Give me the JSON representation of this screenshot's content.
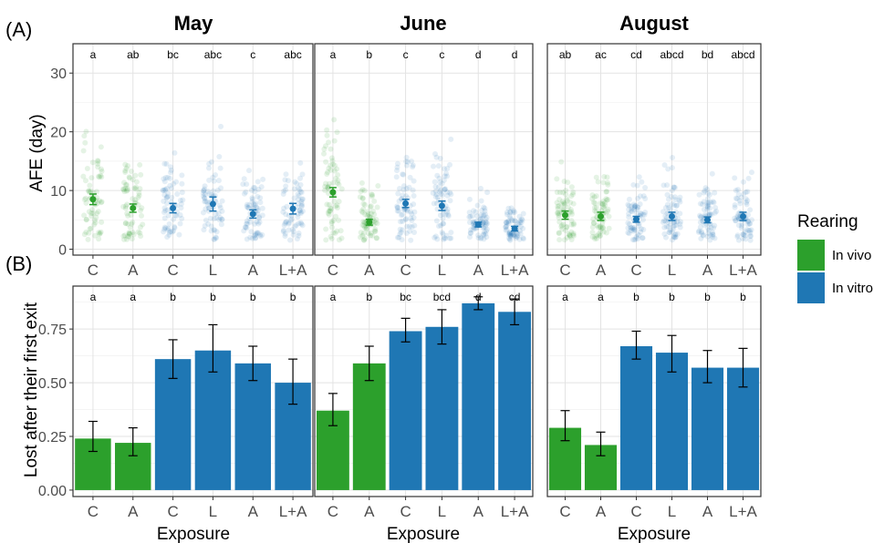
{
  "figure": {
    "panel_a_letter": "A",
    "panel_b_letter": "B",
    "legend": {
      "title": "Rearing",
      "items": [
        {
          "label": "In vivo",
          "color": "#2ca02c"
        },
        {
          "label": "In vitro",
          "color": "#1f77b4"
        }
      ]
    }
  },
  "chart_data": [
    {
      "id": "afe",
      "type": "scatter",
      "ylabel": "AFE (day)",
      "xlabel": "",
      "ylim": [
        -1,
        35
      ],
      "yticks": [
        0,
        10,
        20,
        30
      ],
      "grid": true,
      "facets": [
        {
          "title": "May",
          "categories": [
            "C",
            "A",
            "C",
            "L",
            "A",
            "L+A"
          ],
          "rearing": [
            "In vivo",
            "In vivo",
            "In vitro",
            "In vitro",
            "In vitro",
            "In vitro"
          ],
          "means": [
            8.5,
            7.0,
            7.0,
            7.7,
            6.0,
            6.9
          ],
          "lower": [
            7.6,
            6.3,
            6.2,
            6.5,
            5.3,
            6.0
          ],
          "upper": [
            9.4,
            7.7,
            7.8,
            8.9,
            6.7,
            7.8
          ],
          "letters": [
            "a",
            "ab",
            "bc",
            "abc",
            "c",
            "abc"
          ]
        },
        {
          "title": "June",
          "categories": [
            "C",
            "A",
            "C",
            "L",
            "A",
            "L+A"
          ],
          "rearing": [
            "In vivo",
            "In vivo",
            "In vitro",
            "In vitro",
            "In vitro",
            "In vitro"
          ],
          "means": [
            9.7,
            4.6,
            7.8,
            7.4,
            4.2,
            3.5
          ],
          "lower": [
            8.9,
            4.1,
            7.1,
            6.6,
            3.8,
            3.1
          ],
          "upper": [
            10.5,
            5.1,
            8.5,
            8.2,
            4.6,
            3.9
          ],
          "letters": [
            "a",
            "b",
            "c",
            "c",
            "d",
            "d"
          ]
        },
        {
          "title": "August",
          "categories": [
            "C",
            "A",
            "C",
            "L",
            "A",
            "L+A"
          ],
          "rearing": [
            "In vivo",
            "In vivo",
            "In vitro",
            "In vitro",
            "In vitro",
            "In vitro"
          ],
          "means": [
            5.8,
            5.6,
            5.1,
            5.6,
            5.0,
            5.6
          ],
          "lower": [
            5.1,
            4.9,
            4.6,
            4.9,
            4.5,
            4.9
          ],
          "upper": [
            6.5,
            6.3,
            5.6,
            6.3,
            5.5,
            6.3
          ],
          "letters": [
            "ab",
            "ac",
            "cd",
            "abcd",
            "bd",
            "abcd"
          ]
        }
      ]
    },
    {
      "id": "lost",
      "type": "bar",
      "ylabel": "Lost after their first exit",
      "xlabel": "Exposure",
      "ylim": [
        -0.03,
        0.95
      ],
      "yticks": [
        0.0,
        0.25,
        0.5,
        0.75
      ],
      "ytick_labels": [
        "0.00",
        "0.25",
        "0.50",
        "0.75"
      ],
      "grid": true,
      "facets": [
        {
          "title": "May",
          "categories": [
            "C",
            "A",
            "C",
            "L",
            "A",
            "L+A"
          ],
          "rearing": [
            "In vivo",
            "In vivo",
            "In vitro",
            "In vitro",
            "In vitro",
            "In vitro"
          ],
          "values": [
            0.24,
            0.22,
            0.61,
            0.65,
            0.59,
            0.5
          ],
          "lower": [
            0.18,
            0.16,
            0.52,
            0.55,
            0.51,
            0.4
          ],
          "upper": [
            0.32,
            0.29,
            0.7,
            0.77,
            0.67,
            0.61
          ],
          "letters": [
            "a",
            "a",
            "b",
            "b",
            "b",
            "b"
          ]
        },
        {
          "title": "June",
          "categories": [
            "C",
            "A",
            "C",
            "L",
            "A",
            "L+A"
          ],
          "rearing": [
            "In vivo",
            "In vivo",
            "In vitro",
            "In vitro",
            "In vitro",
            "In vitro"
          ],
          "values": [
            0.37,
            0.59,
            0.74,
            0.76,
            0.87,
            0.83
          ],
          "lower": [
            0.3,
            0.51,
            0.69,
            0.68,
            0.84,
            0.77
          ],
          "upper": [
            0.45,
            0.67,
            0.8,
            0.84,
            0.9,
            0.89
          ],
          "letters": [
            "a",
            "b",
            "bc",
            "bcd",
            "d",
            "cd"
          ]
        },
        {
          "title": "August",
          "categories": [
            "C",
            "A",
            "C",
            "L",
            "A",
            "L+A"
          ],
          "rearing": [
            "In vivo",
            "In vivo",
            "In vitro",
            "In vitro",
            "In vitro",
            "In vitro"
          ],
          "values": [
            0.29,
            0.21,
            0.67,
            0.64,
            0.57,
            0.57
          ],
          "lower": [
            0.23,
            0.16,
            0.61,
            0.55,
            0.5,
            0.48
          ],
          "upper": [
            0.37,
            0.27,
            0.74,
            0.72,
            0.65,
            0.66
          ],
          "letters": [
            "a",
            "a",
            "b",
            "b",
            "b",
            "b"
          ]
        }
      ]
    }
  ]
}
